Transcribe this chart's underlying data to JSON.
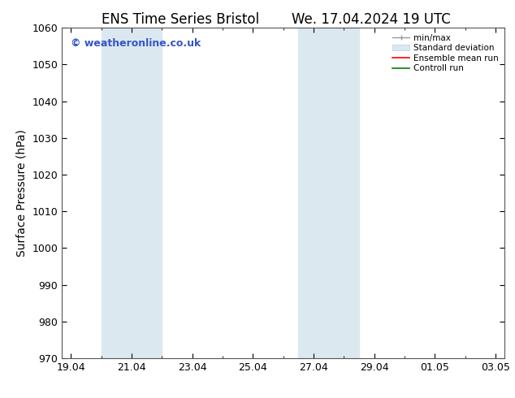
{
  "title_left": "ENS Time Series Bristol",
  "title_right": "We. 17.04.2024 19 UTC",
  "ylabel": "Surface Pressure (hPa)",
  "ylim": [
    970,
    1060
  ],
  "yticks": [
    970,
    980,
    990,
    1000,
    1010,
    1020,
    1030,
    1040,
    1050,
    1060
  ],
  "xtick_labels": [
    "19.04",
    "21.04",
    "23.04",
    "25.04",
    "27.04",
    "29.04",
    "01.05",
    "03.05"
  ],
  "xtick_days_from_start": [
    0,
    2,
    4,
    6,
    8,
    10,
    12,
    14
  ],
  "shaded_bands": [
    {
      "x_start": 1,
      "x_end": 3,
      "color": "#dce8f0"
    },
    {
      "x_start": 7.5,
      "x_end": 9.5,
      "color": "#dce8f0"
    }
  ],
  "watermark_text": "© weatheronline.co.uk",
  "watermark_color": "#3355cc",
  "bg_color": "#ffffff",
  "title_fontsize": 12,
  "label_fontsize": 10,
  "tick_fontsize": 9,
  "minor_tick_interval": 0.5,
  "xlim": [
    -0.3,
    14.3
  ]
}
